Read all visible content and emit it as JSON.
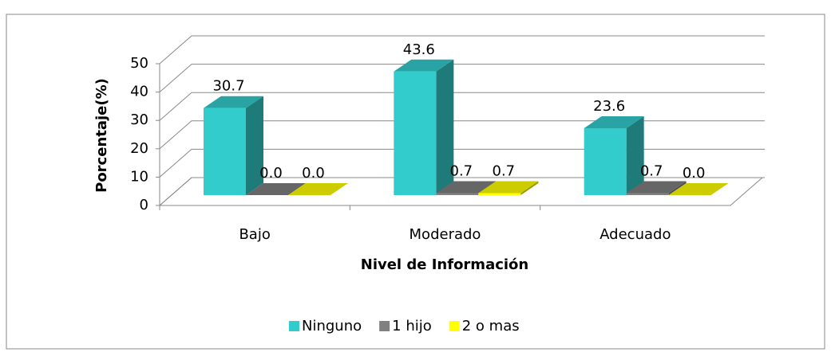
{
  "chart_data": {
    "type": "bar3d",
    "xlabel": "Nivel de Información",
    "ylabel": "Porcentaje(%)",
    "categories": [
      "Bajo",
      "Moderado",
      "Adecuado"
    ],
    "series": [
      {
        "name": "Ninguno",
        "color": "#33cccc",
        "values": [
          30.7,
          43.6,
          23.6
        ],
        "value_labels": [
          "30.7",
          "43.6",
          "23.6"
        ]
      },
      {
        "name": "1 hijo",
        "color": "#808080",
        "values": [
          0,
          0.7,
          0.7
        ],
        "value_labels": [
          "0.0",
          "0.7",
          "0.7"
        ]
      },
      {
        "name": "2 o mas",
        "color": "#ffff00",
        "values": [
          0,
          0.7,
          0
        ],
        "value_labels": [
          "0.0",
          "0.7",
          "0.0"
        ]
      }
    ],
    "ylim": [
      0,
      50
    ],
    "yticks": [
      0,
      10,
      20,
      30,
      40,
      50
    ],
    "grid": true,
    "legend": "bottom"
  }
}
